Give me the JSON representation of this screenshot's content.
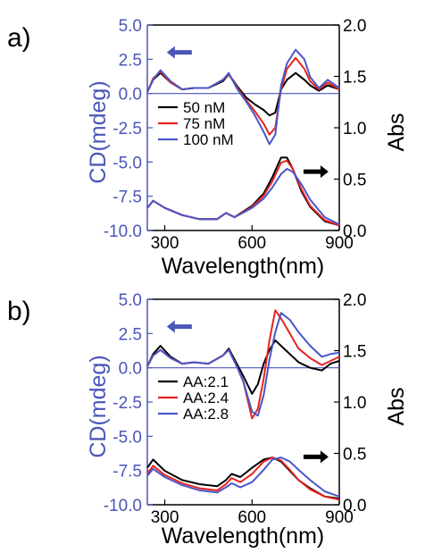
{
  "colors": {
    "cd_axis": "#4a56b8",
    "abs_axis": "#000000",
    "series_black": "#000000",
    "series_red": "#e8231f",
    "series_blue": "#4a56c8"
  },
  "chart_data": [
    {
      "type": "line",
      "panel_label": "a)",
      "xlabel": "Wavelength(nm)",
      "ylabel_left": "CD(mdeg)",
      "ylabel_right": "Abs",
      "xlim": [
        240,
        900
      ],
      "ylim_left": [
        -10.0,
        5.0
      ],
      "ylim_right": [
        0.0,
        2.0
      ],
      "xticks": [
        "300",
        "600",
        "900"
      ],
      "xtick_values": [
        300,
        600,
        900
      ],
      "yticks_left": [
        "5.0",
        "2.5",
        "0.0",
        "-2.5",
        "-5.0",
        "-7.5",
        "-10.0"
      ],
      "ytick_values_left": [
        5.0,
        2.5,
        0.0,
        -2.5,
        -5.0,
        -7.5,
        -10.0
      ],
      "yticks_right": [
        "2.0",
        "1.5",
        "1.0",
        "0.5",
        "0.0"
      ],
      "ytick_values_right": [
        2.0,
        1.5,
        1.0,
        0.5,
        0.0
      ],
      "baseline_cd": 0.0,
      "arrows": [
        {
          "direction": "left",
          "color": "cd_axis",
          "x": 350,
          "y_left": 3.0
        },
        {
          "direction": "right",
          "color": "abs_axis",
          "x": 820,
          "y_left": -5.7
        }
      ],
      "legend": {
        "position": "center-left",
        "entries": [
          {
            "label": "50 nM",
            "color": "series_black"
          },
          {
            "label": "75 nM",
            "color": "series_red"
          },
          {
            "label": "100 nM",
            "color": "series_blue"
          }
        ]
      },
      "series": [
        {
          "name": "50 nM",
          "color": "series_black",
          "axis": "left",
          "kind": "CD",
          "x": [
            240,
            260,
            285,
            320,
            360,
            400,
            450,
            500,
            520,
            550,
            580,
            610,
            640,
            660,
            680,
            700,
            720,
            750,
            780,
            800,
            830,
            860,
            900
          ],
          "y": [
            0.1,
            1.0,
            1.5,
            0.8,
            0.3,
            0.4,
            0.4,
            0.9,
            1.4,
            0.5,
            -0.3,
            -0.8,
            -1.2,
            -1.6,
            -1.4,
            0.3,
            1.0,
            1.5,
            1.0,
            0.6,
            0.2,
            0.6,
            0.3
          ]
        },
        {
          "name": "75 nM",
          "color": "series_red",
          "axis": "left",
          "kind": "CD",
          "x": [
            240,
            260,
            285,
            320,
            360,
            400,
            450,
            500,
            520,
            550,
            580,
            610,
            640,
            660,
            680,
            700,
            720,
            750,
            780,
            800,
            830,
            860,
            900
          ],
          "y": [
            0.1,
            1.1,
            1.6,
            0.8,
            0.3,
            0.4,
            0.4,
            1.0,
            1.4,
            0.4,
            -0.5,
            -1.3,
            -2.2,
            -3.0,
            -2.5,
            0.3,
            1.8,
            2.6,
            1.8,
            0.9,
            0.3,
            0.8,
            0.3
          ]
        },
        {
          "name": "100 nM",
          "color": "series_blue",
          "axis": "left",
          "kind": "CD",
          "x": [
            240,
            260,
            285,
            320,
            360,
            400,
            450,
            500,
            520,
            550,
            580,
            610,
            640,
            660,
            680,
            700,
            720,
            750,
            780,
            800,
            830,
            860,
            900
          ],
          "y": [
            0.1,
            1.0,
            1.7,
            0.9,
            0.3,
            0.4,
            0.4,
            1.0,
            1.5,
            0.3,
            -0.6,
            -1.6,
            -2.8,
            -3.7,
            -3.0,
            0.6,
            2.2,
            3.2,
            2.5,
            1.2,
            0.4,
            1.0,
            0.4
          ]
        },
        {
          "name": "50 nM",
          "color": "series_black",
          "axis": "right",
          "kind": "Abs",
          "x": [
            240,
            260,
            300,
            360,
            420,
            480,
            510,
            540,
            600,
            640,
            670,
            700,
            720,
            740,
            770,
            800,
            850,
            900
          ],
          "y": [
            0.22,
            0.29,
            0.22,
            0.15,
            0.11,
            0.11,
            0.17,
            0.13,
            0.24,
            0.36,
            0.52,
            0.71,
            0.71,
            0.6,
            0.38,
            0.23,
            0.09,
            0.05
          ]
        },
        {
          "name": "75 nM",
          "color": "series_red",
          "axis": "right",
          "kind": "Abs",
          "x": [
            240,
            260,
            300,
            360,
            420,
            480,
            510,
            540,
            600,
            640,
            670,
            700,
            720,
            740,
            770,
            800,
            850,
            900
          ],
          "y": [
            0.22,
            0.29,
            0.22,
            0.15,
            0.11,
            0.11,
            0.17,
            0.13,
            0.23,
            0.34,
            0.48,
            0.66,
            0.68,
            0.6,
            0.4,
            0.24,
            0.1,
            0.05
          ]
        },
        {
          "name": "100 nM",
          "color": "series_blue",
          "axis": "right",
          "kind": "Abs",
          "x": [
            240,
            260,
            300,
            360,
            420,
            480,
            510,
            540,
            600,
            640,
            670,
            700,
            720,
            740,
            770,
            800,
            850,
            900
          ],
          "y": [
            0.22,
            0.29,
            0.22,
            0.15,
            0.11,
            0.11,
            0.17,
            0.13,
            0.22,
            0.31,
            0.42,
            0.55,
            0.6,
            0.57,
            0.45,
            0.3,
            0.13,
            0.06
          ]
        }
      ]
    },
    {
      "type": "line",
      "panel_label": "b)",
      "xlabel": "Wavelength(nm)",
      "ylabel_left": "CD(mdeg)",
      "ylabel_right": "Abs",
      "xlim": [
        240,
        900
      ],
      "ylim_left": [
        -10.0,
        5.0
      ],
      "ylim_right": [
        0.0,
        2.0
      ],
      "xticks": [
        "300",
        "600",
        "900"
      ],
      "xtick_values": [
        300,
        600,
        900
      ],
      "yticks_left": [
        "5.0",
        "2.5",
        "0.0",
        "-2.5",
        "-5.0",
        "-7.5",
        "-10.0"
      ],
      "ytick_values_left": [
        5.0,
        2.5,
        0.0,
        -2.5,
        -5.0,
        -7.5,
        -10.0
      ],
      "yticks_right": [
        "2.0",
        "1.5",
        "1.0",
        "0.5",
        "0.0"
      ],
      "ytick_values_right": [
        2.0,
        1.5,
        1.0,
        0.5,
        0.0
      ],
      "baseline_cd": 0.0,
      "arrows": [
        {
          "direction": "left",
          "color": "cd_axis",
          "x": 350,
          "y_left": 3.0
        },
        {
          "direction": "right",
          "color": "abs_axis",
          "x": 820,
          "y_left": -6.5
        }
      ],
      "legend": {
        "position": "center-left",
        "entries": [
          {
            "label": "AA:2.1",
            "color": "series_black"
          },
          {
            "label": "AA:2.4",
            "color": "series_red"
          },
          {
            "label": "AA:2.8",
            "color": "series_blue"
          }
        ]
      },
      "series": [
        {
          "name": "AA:2.1",
          "color": "series_black",
          "axis": "left",
          "kind": "CD",
          "x": [
            240,
            260,
            285,
            320,
            360,
            400,
            450,
            500,
            520,
            550,
            570,
            600,
            620,
            640,
            660,
            680,
            700,
            730,
            760,
            800,
            840,
            870,
            900
          ],
          "y": [
            0.1,
            1.0,
            1.6,
            0.8,
            0.3,
            0.4,
            0.3,
            0.9,
            1.4,
            0.2,
            -0.6,
            -1.9,
            -1.2,
            0.3,
            1.3,
            2.0,
            1.6,
            1.0,
            0.4,
            0.0,
            -0.2,
            0.3,
            0.5
          ]
        },
        {
          "name": "AA:2.4",
          "color": "series_red",
          "axis": "left",
          "kind": "CD",
          "x": [
            240,
            260,
            285,
            320,
            360,
            400,
            450,
            500,
            520,
            550,
            570,
            600,
            620,
            640,
            660,
            680,
            700,
            730,
            760,
            800,
            840,
            870,
            900
          ],
          "y": [
            0.1,
            0.9,
            1.3,
            0.7,
            0.3,
            0.4,
            0.3,
            0.9,
            1.3,
            0.0,
            -1.0,
            -3.7,
            -3.0,
            -0.8,
            2.0,
            4.2,
            3.6,
            2.5,
            1.4,
            0.7,
            0.2,
            0.5,
            0.8
          ]
        },
        {
          "name": "AA:2.8",
          "color": "series_blue",
          "axis": "left",
          "kind": "CD",
          "x": [
            240,
            260,
            285,
            320,
            360,
            400,
            450,
            500,
            520,
            550,
            570,
            600,
            620,
            640,
            660,
            680,
            700,
            730,
            760,
            800,
            840,
            870,
            900
          ],
          "y": [
            0.1,
            0.9,
            1.3,
            0.7,
            0.3,
            0.4,
            0.3,
            0.9,
            1.3,
            0.0,
            -1.0,
            -3.2,
            -3.5,
            -2.0,
            0.6,
            2.6,
            4.0,
            3.5,
            2.6,
            1.6,
            0.8,
            1.0,
            1.1
          ]
        },
        {
          "name": "AA:2.1",
          "color": "series_black",
          "axis": "right",
          "kind": "Abs",
          "x": [
            240,
            260,
            300,
            360,
            420,
            480,
            510,
            530,
            560,
            600,
            640,
            670,
            700,
            730,
            760,
            800,
            850,
            900
          ],
          "y": [
            0.36,
            0.44,
            0.33,
            0.24,
            0.2,
            0.18,
            0.24,
            0.3,
            0.27,
            0.36,
            0.44,
            0.46,
            0.42,
            0.33,
            0.24,
            0.16,
            0.08,
            0.06
          ]
        },
        {
          "name": "AA:2.4",
          "color": "series_red",
          "axis": "right",
          "kind": "Abs",
          "x": [
            240,
            260,
            300,
            360,
            420,
            480,
            510,
            530,
            560,
            600,
            640,
            670,
            700,
            730,
            760,
            800,
            850,
            900
          ],
          "y": [
            0.3,
            0.38,
            0.29,
            0.21,
            0.16,
            0.14,
            0.2,
            0.26,
            0.22,
            0.3,
            0.42,
            0.46,
            0.43,
            0.34,
            0.24,
            0.15,
            0.08,
            0.05
          ]
        },
        {
          "name": "AA:2.8",
          "color": "series_blue",
          "axis": "right",
          "kind": "Abs",
          "x": [
            240,
            260,
            300,
            360,
            420,
            480,
            510,
            530,
            560,
            600,
            640,
            670,
            700,
            730,
            760,
            800,
            850,
            900
          ],
          "y": [
            0.28,
            0.35,
            0.27,
            0.19,
            0.14,
            0.12,
            0.17,
            0.21,
            0.17,
            0.22,
            0.34,
            0.44,
            0.46,
            0.42,
            0.34,
            0.24,
            0.13,
            0.08
          ]
        }
      ]
    }
  ]
}
